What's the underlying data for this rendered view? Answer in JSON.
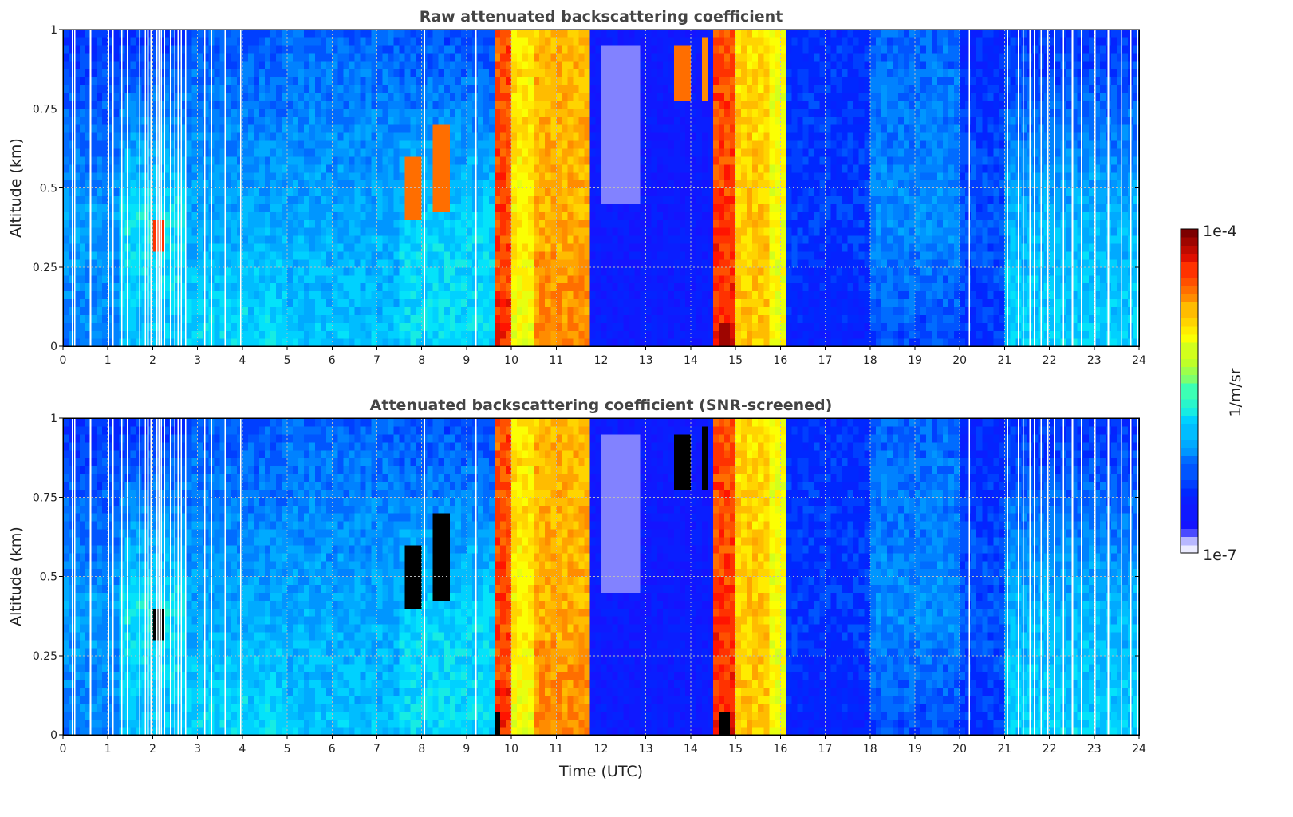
{
  "chart_data": [
    {
      "type": "heatmap",
      "title": "Raw attenuated backscattering coefficient",
      "xlabel": "",
      "ylabel": "Altitude (km)",
      "xlim": [
        0,
        24
      ],
      "ylim": [
        0,
        1
      ],
      "xticks": [
        "0",
        "1",
        "2",
        "3",
        "4",
        "5",
        "6",
        "7",
        "8",
        "9",
        "10",
        "11",
        "12",
        "13",
        "14",
        "15",
        "16",
        "17",
        "18",
        "19",
        "20",
        "21",
        "22",
        "23",
        "24"
      ],
      "yticks": [
        "0",
        "0.25",
        "0.5",
        "0.75",
        "1"
      ],
      "grid": true,
      "screened": false
    },
    {
      "type": "heatmap",
      "title": "Attenuated backscattering coefficient (SNR-screened)",
      "xlabel": "Time (UTC)",
      "ylabel": "Altitude (km)",
      "xlim": [
        0,
        24
      ],
      "ylim": [
        0,
        1
      ],
      "xticks": [
        "0",
        "1",
        "2",
        "3",
        "4",
        "5",
        "6",
        "7",
        "8",
        "9",
        "10",
        "11",
        "12",
        "13",
        "14",
        "15",
        "16",
        "17",
        "18",
        "19",
        "20",
        "21",
        "22",
        "23",
        "24"
      ],
      "yticks": [
        "0",
        "0.25",
        "0.5",
        "0.75",
        "1"
      ],
      "grid": true,
      "screened": true
    }
  ],
  "field": {
    "units": "log10(1/m/sr)",
    "column_profiles": [
      {
        "t0": 0,
        "t1": 1.3,
        "surface": -6.1,
        "mid": -6.0,
        "top": -6.4
      },
      {
        "t0": 1.3,
        "t1": 2.8,
        "surface": -5.9,
        "mid": -5.7,
        "top": -6.4
      },
      {
        "t0": 2.8,
        "t1": 5.0,
        "surface": -5.75,
        "mid": -5.95,
        "top": -6.25
      },
      {
        "t0": 5.0,
        "t1": 7.5,
        "surface": -5.85,
        "mid": -5.95,
        "top": -6.2
      },
      {
        "t0": 7.5,
        "t1": 9.6,
        "surface": -5.75,
        "mid": -5.8,
        "top": -6.3
      },
      {
        "t0": 9.6,
        "t1": 10.0,
        "surface": -4.35,
        "mid": -4.4,
        "top": -4.45
      },
      {
        "t0": 10.0,
        "t1": 10.5,
        "surface": -5.0,
        "mid": -4.9,
        "top": -4.9
      },
      {
        "t0": 10.5,
        "t1": 11.8,
        "surface": -4.6,
        "mid": -4.7,
        "top": -4.75
      },
      {
        "t0": 11.8,
        "t1": 14.5,
        "surface": -6.55,
        "mid": -6.6,
        "top": -6.6
      },
      {
        "t0": 14.5,
        "t1": 15.0,
        "surface": -4.3,
        "mid": -4.4,
        "top": -4.45
      },
      {
        "t0": 15.0,
        "t1": 15.7,
        "surface": -4.8,
        "mid": -4.8,
        "top": -4.85
      },
      {
        "t0": 15.7,
        "t1": 16.1,
        "surface": -5.0,
        "mid": -5.0,
        "top": -5.0
      },
      {
        "t0": 16.1,
        "t1": 18.0,
        "surface": -6.5,
        "mid": -6.35,
        "top": -6.4
      },
      {
        "t0": 18.0,
        "t1": 20.0,
        "surface": -6.3,
        "mid": -6.05,
        "top": -6.2
      },
      {
        "t0": 20.0,
        "t1": 21.0,
        "surface": -6.4,
        "mid": -6.25,
        "top": -6.45
      },
      {
        "t0": 21.0,
        "t1": 24.0,
        "surface": -5.8,
        "mid": -5.9,
        "top": -6.4
      }
    ],
    "features": [
      {
        "t0": 1.95,
        "t1": 2.3,
        "z0": 0.29,
        "z1": 0.39,
        "value": -4.4,
        "screened": true
      },
      {
        "t0": 7.6,
        "t1": 8.0,
        "z0": 0.4,
        "z1": 0.6,
        "value": -4.5,
        "screened": true
      },
      {
        "t0": 8.3,
        "t1": 8.6,
        "z0": 0.42,
        "z1": 0.7,
        "value": -4.5,
        "screened": true
      },
      {
        "t0": 9.65,
        "t1": 9.8,
        "z0": 0,
        "z1": 0.08,
        "value": -4.2,
        "screened": true
      },
      {
        "t0": 13.6,
        "t1": 14.0,
        "z0": 0.78,
        "z1": 0.95,
        "value": -4.5,
        "screened": true
      },
      {
        "t0": 14.2,
        "t1": 14.4,
        "z0": 0.78,
        "z1": 0.98,
        "value": -4.6,
        "screened": true
      },
      {
        "t0": 14.6,
        "t1": 14.9,
        "z0": 0,
        "z1": 0.08,
        "value": -4.1,
        "screened": true
      },
      {
        "t0": 12.0,
        "t1": 12.9,
        "z0": 0.45,
        "z1": 0.95,
        "value": -6.85,
        "screened": false
      }
    ],
    "missing_times": [
      0.2,
      0.25,
      0.6,
      1.0,
      1.1,
      1.3,
      1.42,
      1.7,
      1.82,
      1.88,
      1.95,
      2.08,
      2.13,
      2.18,
      2.25,
      2.38,
      2.48,
      2.55,
      2.62,
      2.72,
      3.15,
      3.3,
      3.6,
      3.95,
      8.05,
      9.2,
      20.2,
      21.05,
      21.3,
      21.4,
      21.55,
      21.65,
      21.8,
      21.95,
      22.1,
      22.3,
      22.5,
      22.7,
      23.0,
      23.3,
      23.6,
      23.8,
      23.95
    ]
  },
  "colorbar": {
    "label": "1/m/sr",
    "max_label": "1e-4",
    "min_label": "1e-7",
    "range_log10": [
      -7,
      -4
    ]
  }
}
